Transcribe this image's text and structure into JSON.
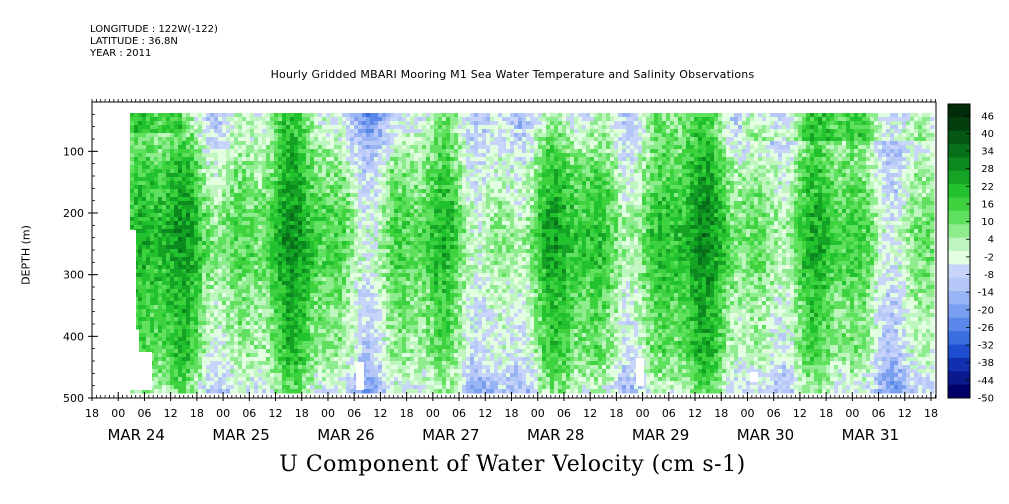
{
  "header": {
    "longitude": "LONGITUDE : 122W(-122)",
    "latitude": "LATITUDE : 36.8N",
    "year": "YEAR : 2011"
  },
  "chart_data": {
    "type": "heatmap",
    "title": "Hourly Gridded MBARI Mooring M1 Sea Water Temperature and Salinity Observations",
    "xlabel": "U Component of Water Velocity (cm s-1)",
    "ylabel": "DEPTH (m)",
    "y_ticks": [
      100,
      200,
      300,
      400,
      500
    ],
    "ylim": [
      500,
      20
    ],
    "x_hour_ticks": [
      "18",
      "00",
      "06",
      "12",
      "18",
      "00",
      "06",
      "12",
      "18",
      "00",
      "06",
      "12",
      "18",
      "00",
      "06",
      "12",
      "18",
      "00",
      "06",
      "12",
      "18",
      "00",
      "06",
      "12",
      "18",
      "00",
      "06",
      "12",
      "18",
      "00",
      "06",
      "12",
      "18"
    ],
    "x_date_labels": [
      "MAR 24",
      "MAR 25",
      "MAR 26",
      "MAR 27",
      "MAR 28",
      "MAR 29",
      "MAR 30",
      "MAR 31"
    ],
    "colorbar": {
      "levels": [
        46,
        40,
        34,
        28,
        22,
        16,
        10,
        4,
        -2,
        -8,
        -14,
        -20,
        -26,
        -32,
        -38,
        -44,
        -50
      ],
      "range": [
        -50,
        50
      ],
      "colors": [
        "#000066",
        "#0a1a8c",
        "#1030b0",
        "#1f4fd0",
        "#3a6ee0",
        "#5a88ea",
        "#7a9ff0",
        "#98b4f4",
        "#b6c8f8",
        "#c8d4fa",
        "#e2ffe2",
        "#bff5bf",
        "#8eec8e",
        "#5fe05f",
        "#3fd23f",
        "#22c22e",
        "#15a326",
        "#0d8a1f",
        "#08701a",
        "#055714",
        "#033f0e",
        "#022c09"
      ],
      "tick_values": [
        46,
        40,
        34,
        28,
        22,
        16,
        10,
        4,
        -2,
        -8,
        -14,
        -20,
        -26,
        -32,
        -38,
        -44,
        -50
      ]
    }
  }
}
